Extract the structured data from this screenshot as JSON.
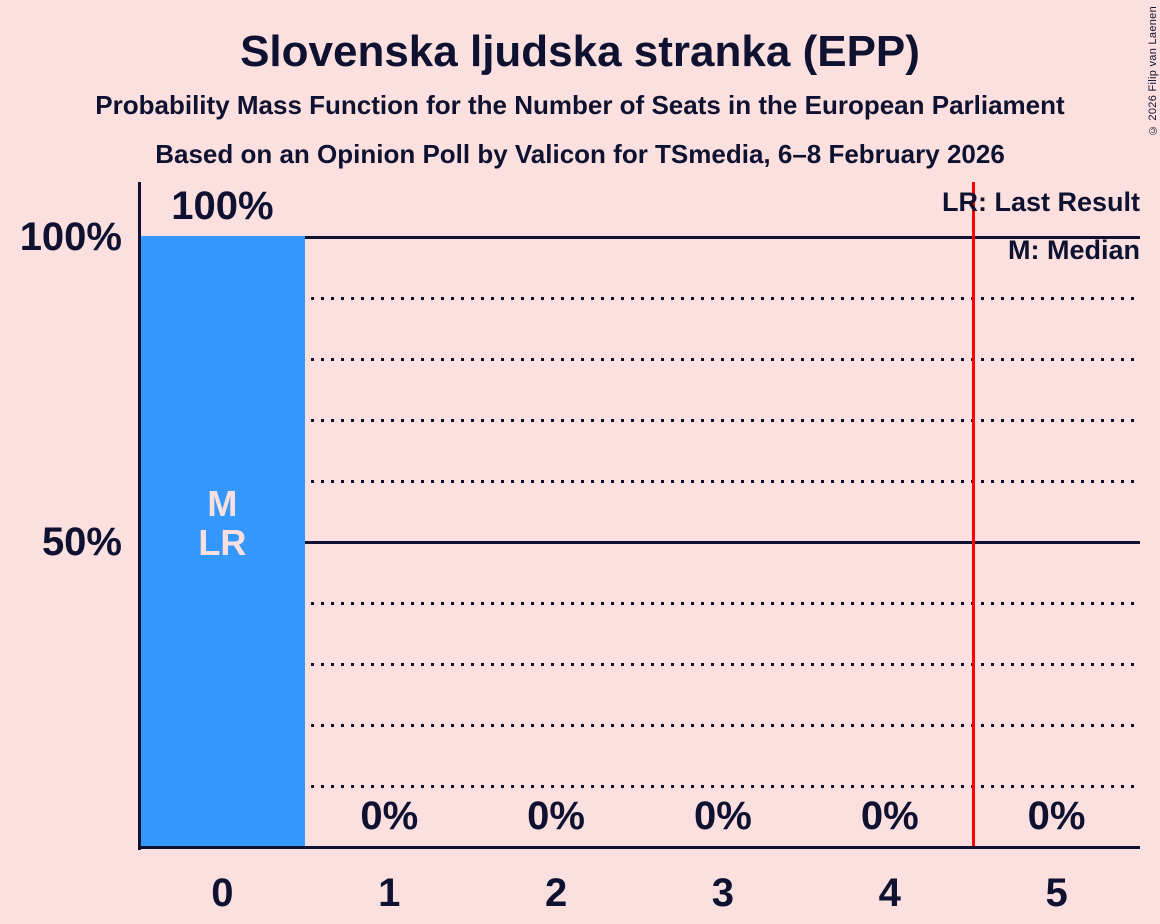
{
  "title": "Slovenska ljudska stranka (EPP)",
  "subtitle1": "Probability Mass Function for the Number of Seats in the European Parliament",
  "subtitle2": "Based on an Opinion Poll by Valicon for TSmedia, 6–8 February 2026",
  "copyright": "© 2026 Filip van Laenen",
  "legend": {
    "lr": "LR: Last Result",
    "m": "M: Median"
  },
  "colors": {
    "background": "#fce0e0",
    "bar": "#3598fc",
    "text": "#0e1230",
    "last_result_line": "#ff0000"
  },
  "chart_data": {
    "type": "bar",
    "title": "Slovenska ljudska stranka (EPP)",
    "categories": [
      "0",
      "1",
      "2",
      "3",
      "4",
      "5"
    ],
    "values": [
      100,
      0,
      0,
      0,
      0,
      0
    ],
    "value_labels": [
      "100%",
      "0%",
      "0%",
      "0%",
      "0%",
      "0%"
    ],
    "ylim": [
      0,
      100
    ],
    "yticks": [
      {
        "value": 100,
        "label": "100%"
      },
      {
        "value": 50,
        "label": "50%"
      }
    ],
    "gridlines": {
      "solid_at": [
        100,
        50
      ],
      "dotted_at": [
        90,
        80,
        70,
        60,
        40,
        30,
        20,
        10
      ]
    },
    "median_seat": 0,
    "last_result_seat": 0,
    "bar_annotation": {
      "seat": 0,
      "lines": [
        "M",
        "LR"
      ]
    },
    "last_result_line_x": 4.5,
    "legend_position": "top-right"
  }
}
